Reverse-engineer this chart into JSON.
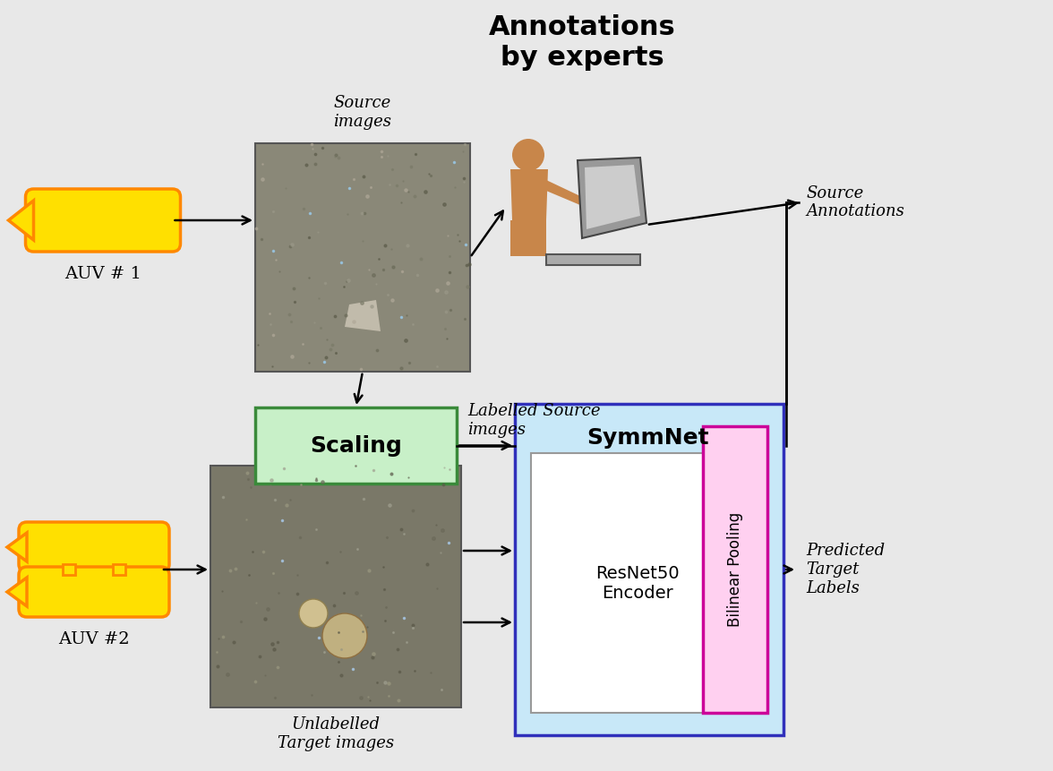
{
  "bg_color": "#e8e8e8",
  "annotations_title": "Annotations\nby experts",
  "source_images_label": "Source\nimages",
  "source_annotations_label": "Source\nAnnotations",
  "labelled_source_label": "Labelled Source\nimages",
  "unlabelled_target_label": "Unlabelled\nTarget images",
  "predicted_labels": "Predicted\nTarget\nLabels",
  "scaling_label": "Scaling",
  "symmnet_label": "SymmNet",
  "resnet_label": "ResNet50\nEncoder",
  "bilinear_label": "Bilinear Pooling",
  "auv1_label": "AUV # 1",
  "auv2_label": "AUV #2",
  "yellow": "#FFE000",
  "orange_border": "#FF8800",
  "green_box_fill": "#c8f0c8",
  "green_box_border": "#3a8a3a",
  "blue_box_fill": "#c8e8f8",
  "blue_box_border": "#3030bb",
  "white_box_fill": "#ffffff",
  "white_box_border": "#999999",
  "pink_box_fill": "#ffd0f0",
  "pink_box_border": "#cc0099",
  "person_color": "#c8864a",
  "monitor_gray": "#aaaaaa",
  "monitor_light": "#dddddd"
}
